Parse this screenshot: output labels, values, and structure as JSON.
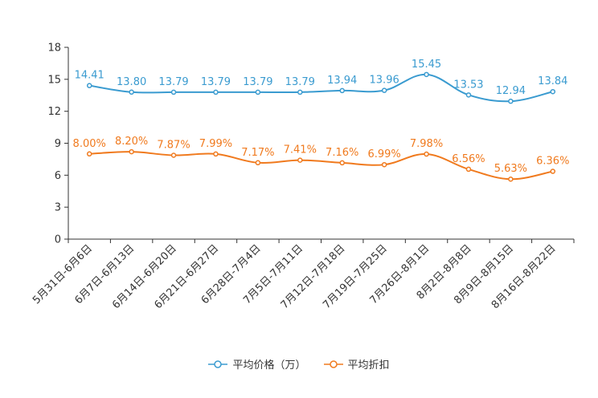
{
  "chart_data": {
    "type": "line",
    "title": "",
    "xlabel": "",
    "ylabel": "",
    "ylim": [
      0,
      18
    ],
    "yticks": [
      0,
      3,
      6,
      9,
      12,
      15,
      18
    ],
    "categories": [
      "5月31日-6月6日",
      "6月7日-6月13日",
      "6月14日-6月20日",
      "6月21日-6月27日",
      "6月28日-7月4日",
      "7月5日-7月11日",
      "7月12日-7月18日",
      "7月19日-7月25日",
      "7月26日-8月1日",
      "8月2日-8月8日",
      "8月9日-8月15日",
      "8月16日-8月22日"
    ],
    "series": [
      {
        "name": "平均价格（万）",
        "color": "#3a9bd0",
        "values": [
          14.41,
          13.8,
          13.79,
          13.79,
          13.79,
          13.79,
          13.94,
          13.96,
          15.45,
          13.53,
          12.94,
          13.84
        ],
        "labels": [
          "14.41",
          "13.80",
          "13.79",
          "13.79",
          "13.79",
          "13.79",
          "13.94",
          "13.96",
          "15.45",
          "13.53",
          "12.94",
          "13.84"
        ]
      },
      {
        "name": "平均折扣",
        "color": "#f07a1e",
        "values": [
          8.0,
          8.2,
          7.87,
          7.99,
          7.17,
          7.41,
          7.16,
          6.99,
          7.98,
          6.56,
          5.63,
          6.36
        ],
        "labels": [
          "8.00%",
          "8.20%",
          "7.87%",
          "7.99%",
          "7.17%",
          "7.41%",
          "7.16%",
          "6.99%",
          "7.98%",
          "6.56%",
          "5.63%",
          "6.36%"
        ]
      }
    ],
    "legend": "bottom-center",
    "grid": false
  }
}
